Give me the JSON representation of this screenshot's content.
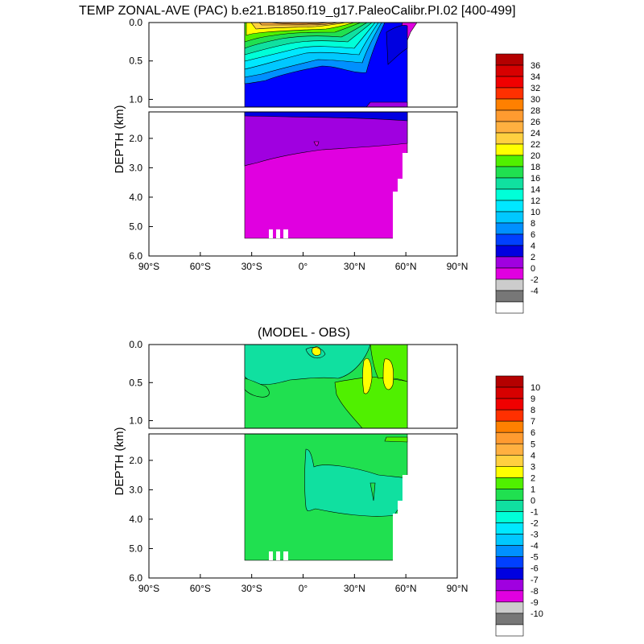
{
  "titles": {
    "main": "TEMP ZONAL-AVE (PAC) b.e21.B1850.f19_g17.PaleoCalibr.PI.02 [400-499]",
    "diff": "(MODEL - OBS)"
  },
  "chart_data": [
    {
      "type": "heatmap",
      "title": "TEMP ZONAL-AVE (PAC) b.e21.B1850.f19_g17.PaleoCalibr.PI.02 [400-499]",
      "ylabel": "DEPTH (km)",
      "xlabel": "",
      "x_ticks": [
        "90°S",
        "60°S",
        "30°S",
        "0°",
        "30°N",
        "60°N",
        "90°N"
      ],
      "x_tick_values": [
        -90,
        -60,
        -30,
        0,
        30,
        60,
        90
      ],
      "y_ticks_upper": [
        "0.0",
        "0.5",
        "1.0"
      ],
      "y_ticks_upper_values": [
        0.0,
        0.5,
        1.0
      ],
      "y_ticks_lower": [
        "2.0",
        "3.0",
        "4.0",
        "5.0",
        "6.0"
      ],
      "y_ticks_lower_values": [
        2.0,
        3.0,
        4.0,
        5.0,
        6.0
      ],
      "xlim": [
        -90,
        90
      ],
      "ylim_upper": [
        0,
        1.1
      ],
      "ylim_lower": [
        1.1,
        6.0
      ],
      "colorbar_labels": [
        "36",
        "34",
        "32",
        "30",
        "28",
        "26",
        "24",
        "22",
        "20",
        "18",
        "16",
        "14",
        "12",
        "10",
        "8",
        "6",
        "4",
        "2",
        "0",
        "-2",
        "-4"
      ],
      "colorbar_colors": [
        "#b40000",
        "#d70000",
        "#f00000",
        "#ff3000",
        "#ff8000",
        "#ff9b30",
        "#ffb040",
        "#ffd040",
        "#ffff00",
        "#50f000",
        "#20e050",
        "#10e0a0",
        "#00ffd8",
        "#00e8ff",
        "#00c8ff",
        "#0090ff",
        "#0040ff",
        "#0000e0",
        "#a000e0",
        "#e000e0",
        "#cccccc",
        "#777777",
        "#ffffff"
      ]
    },
    {
      "type": "heatmap",
      "title": "(MODEL - OBS)",
      "ylabel": "DEPTH (km)",
      "xlabel": "",
      "x_ticks": [
        "90°S",
        "60°S",
        "30°S",
        "0°",
        "30°N",
        "60°N",
        "90°N"
      ],
      "x_tick_values": [
        -90,
        -60,
        -30,
        0,
        30,
        60,
        90
      ],
      "y_ticks_upper": [
        "0.0",
        "0.5",
        "1.0"
      ],
      "y_ticks_upper_values": [
        0.0,
        0.5,
        1.0
      ],
      "y_ticks_lower": [
        "2.0",
        "3.0",
        "4.0",
        "5.0",
        "6.0"
      ],
      "y_ticks_lower_values": [
        2.0,
        3.0,
        4.0,
        5.0,
        6.0
      ],
      "xlim": [
        -90,
        90
      ],
      "ylim_upper": [
        0,
        1.1
      ],
      "ylim_lower": [
        1.1,
        6.0
      ],
      "colorbar_labels": [
        "10",
        "9",
        "8",
        "7",
        "6",
        "5",
        "4",
        "3",
        "2",
        "1",
        "0",
        "-1",
        "-2",
        "-3",
        "-4",
        "-5",
        "-6",
        "-7",
        "-8",
        "-9",
        "-10"
      ],
      "colorbar_colors": [
        "#b40000",
        "#d70000",
        "#f00000",
        "#ff3000",
        "#ff8000",
        "#ff9b30",
        "#ffb040",
        "#ffd040",
        "#ffff00",
        "#50f000",
        "#20e050",
        "#10e0a0",
        "#00ffd8",
        "#00e8ff",
        "#00c8ff",
        "#0090ff",
        "#0040ff",
        "#0000e0",
        "#a000e0",
        "#e000e0",
        "#cccccc",
        "#777777",
        "#ffffff"
      ]
    }
  ]
}
